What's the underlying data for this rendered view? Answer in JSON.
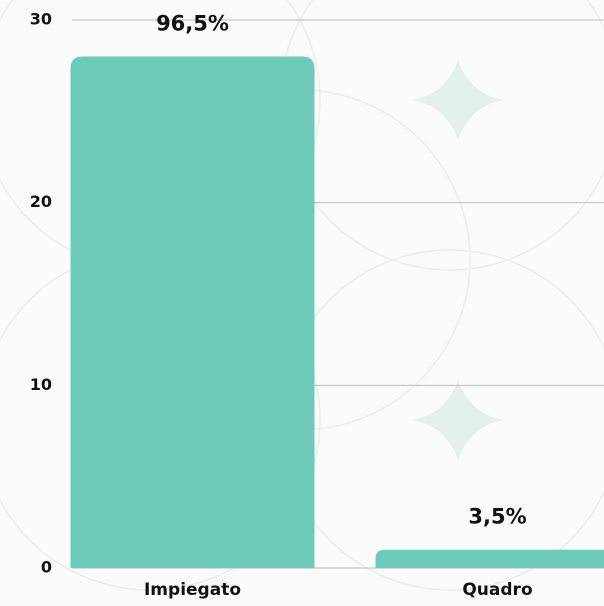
{
  "chart_data": {
    "type": "bar",
    "categories": [
      "Impiegato",
      "Quadro"
    ],
    "values": [
      28,
      1
    ],
    "share_labels": [
      "96,5%",
      "3,5%"
    ],
    "color": "#6ccbb9",
    "ylim": [
      0,
      30
    ],
    "yticks": [
      0,
      10,
      20,
      30
    ],
    "grid": true
  }
}
